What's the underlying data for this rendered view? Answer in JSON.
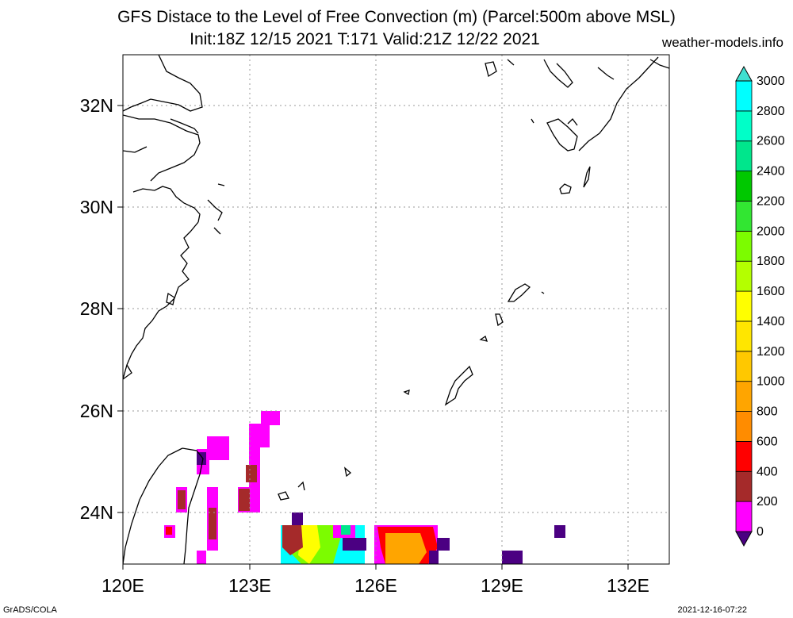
{
  "title_line1": "GFS Distace to the Level of Free Convection (m) (Parcel:500m above MSL)",
  "title_line2": "Init:18Z 12/15 2021 T:171 Valid:21Z 12/22 2021",
  "site": "weather-models.info",
  "footer_left": "GrADS/COLA",
  "footer_right": "2021-12-16-07:22",
  "map": {
    "lon_range": [
      120,
      133
    ],
    "lat_range": [
      23,
      33
    ],
    "lon_ticks": [
      "120E",
      "123E",
      "126E",
      "129E",
      "132E"
    ],
    "lat_ticks": [
      "24N",
      "26N",
      "28N",
      "30N",
      "32N"
    ],
    "grid": "dotted"
  },
  "colorbar": {
    "levels": [
      "0",
      "200",
      "400",
      "600",
      "800",
      "1000",
      "1200",
      "1400",
      "1600",
      "1800",
      "2000",
      "2200",
      "2400",
      "2600",
      "2800",
      "3000"
    ],
    "colors": [
      "#4b0082",
      "#ff00ff",
      "#a52a2a",
      "#ff0000",
      "#ff8c00",
      "#ffa500",
      "#ffc800",
      "#ffe600",
      "#ffff00",
      "#b4ff00",
      "#7cfc00",
      "#32e632",
      "#00c800",
      "#00e68c",
      "#00ffc8",
      "#00ffff",
      "#40e0d0"
    ]
  }
}
